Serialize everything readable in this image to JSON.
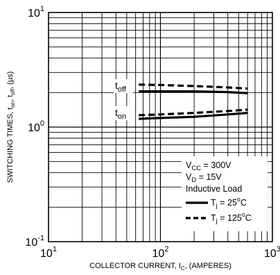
{
  "chart_data": {
    "type": "line",
    "title": "",
    "xlabel": "COLLECTOR CURRENT, I_C, (AMPERES)",
    "xlabel_parts": {
      "a": "COLLECTOR CURRENT, I",
      "sub": "C",
      "b": ", (AMPERES)"
    },
    "ylabel": "SWITCHING TIMES, t_on, t_off, (µs)",
    "ylabel_parts": {
      "a": "SWITCHING TIMES, t",
      "sub1": "on",
      "b": ", t",
      "sub2": "off",
      "c": ", (µs)"
    },
    "x_scale": "log",
    "y_scale": "log",
    "xlim": [
      10,
      1000
    ],
    "ylim": [
      0.1,
      10
    ],
    "grid": true,
    "x_ticks": [
      {
        "base": "10",
        "exp": "1"
      },
      {
        "base": "10",
        "exp": "2"
      },
      {
        "base": "10",
        "exp": "3"
      }
    ],
    "y_ticks": [
      {
        "base": "10",
        "exp": "-1"
      },
      {
        "base": "10",
        "exp": "0"
      },
      {
        "base": "10",
        "exp": "1"
      }
    ],
    "curve_labels": [
      {
        "base": "t",
        "sub": "off"
      },
      {
        "base": "t",
        "sub": "on"
      }
    ],
    "series": [
      {
        "name": "t_off, Tj = 25°C",
        "style": "solid",
        "x": [
          64,
          100,
          200,
          400,
          600
        ],
        "y": [
          2.05,
          2.05,
          2.05,
          2.02,
          1.98
        ]
      },
      {
        "name": "t_off, Tj = 125°C",
        "style": "dashed",
        "x": [
          64,
          100,
          200,
          400,
          600
        ],
        "y": [
          2.35,
          2.33,
          2.28,
          2.22,
          2.17
        ]
      },
      {
        "name": "t_on, Tj = 25°C",
        "style": "solid",
        "x": [
          64,
          100,
          200,
          400,
          600
        ],
        "y": [
          1.18,
          1.2,
          1.23,
          1.29,
          1.33
        ]
      },
      {
        "name": "t_on, Tj = 125°C",
        "style": "dashed",
        "x": [
          64,
          100,
          200,
          400,
          600
        ],
        "y": [
          1.27,
          1.29,
          1.33,
          1.38,
          1.42
        ]
      }
    ],
    "legend": {
      "placement": "bottom-right",
      "conditions": [
        {
          "a": "V",
          "sub": "CC",
          "b": " = 300V"
        },
        {
          "a": "V",
          "sub": "D",
          "b": " = 15V"
        },
        {
          "a": "Inductive Load",
          "sub": "",
          "b": ""
        }
      ],
      "entries": [
        {
          "style": "solid",
          "a": "T",
          "sub": "j",
          "b": " = 25",
          "sup": "o",
          "c": "C"
        },
        {
          "style": "dashed",
          "a": "T",
          "sub": "j",
          "b": " = 125",
          "sup": "o",
          "c": "C"
        }
      ]
    }
  }
}
